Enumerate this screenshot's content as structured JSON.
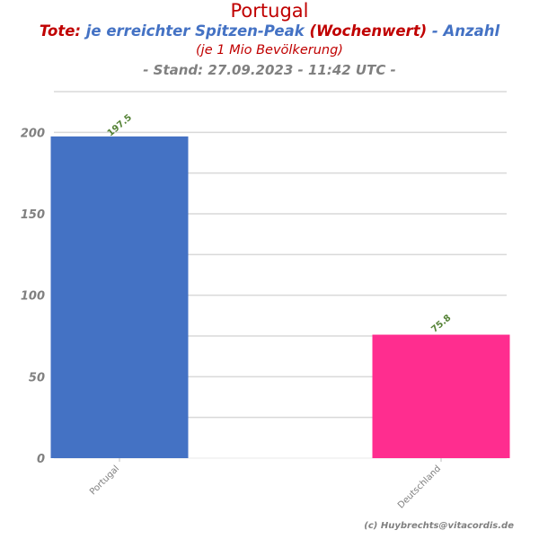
{
  "title": "Portugal",
  "subtitle_parts": {
    "tote": "Tote:",
    "metric": "je erreichter Spitzen-Peak",
    "wochenwert": "(Wochenwert)",
    "anzahl": "- Anzahl"
  },
  "per_million": "(je 1 Mio Bevölkerung)",
  "stand": "- Stand: 27.09.2023 - 11:42 UTC -",
  "credit": "(c) Huybrechts@vitacordis.de",
  "colors": {
    "title_red": "#c00000",
    "title_blue": "#4472c4",
    "label_green": "#548235",
    "axis_gray": "#808080"
  },
  "chart_data": {
    "type": "bar",
    "categories": [
      "Portugal",
      "Deutschland"
    ],
    "values": [
      197.5,
      75.8
    ],
    "value_labels": [
      "197.5",
      "75.8"
    ],
    "bar_colors": [
      "#4472c4",
      "#ff2d8f"
    ],
    "ylim": [
      0,
      225
    ],
    "yticks": [
      0,
      50,
      100,
      150,
      200
    ],
    "ytick_labels": [
      "0",
      "50",
      "100",
      "150",
      "200"
    ],
    "grid": true
  }
}
